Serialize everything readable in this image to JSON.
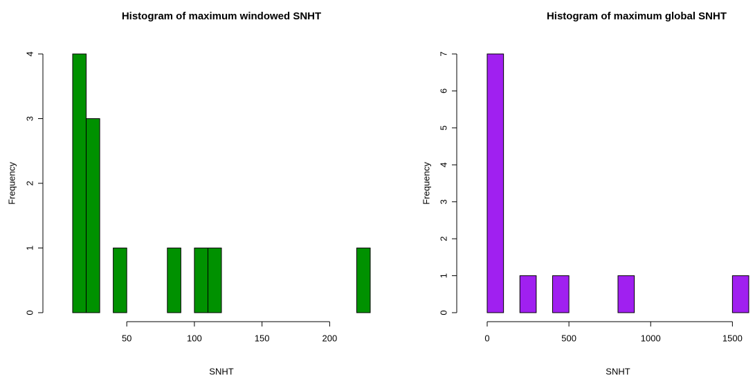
{
  "chart_data": [
    {
      "type": "histogram",
      "title": "Histogram of maximum windowed SNHT",
      "x_label": "SNHT",
      "y_label": "Frequency",
      "bins": [
        10,
        20,
        30,
        40,
        50,
        60,
        70,
        80,
        90,
        100,
        110,
        120,
        130,
        140,
        150,
        160,
        170,
        180,
        190,
        200,
        210,
        220,
        230
      ],
      "values": [
        4,
        3,
        0,
        1,
        0,
        0,
        0,
        1,
        0,
        1,
        1,
        0,
        0,
        0,
        0,
        0,
        0,
        0,
        0,
        0,
        0,
        1
      ],
      "color": "#009100",
      "xlim": [
        10,
        230
      ],
      "ylim": [
        0,
        4
      ],
      "xticks": [
        50,
        100,
        150,
        200
      ],
      "yticks": [
        0,
        1,
        2,
        3,
        4
      ]
    },
    {
      "type": "histogram",
      "title": "Histogram of maximum global SNHT",
      "x_label": "SNHT",
      "y_label": "Frequency",
      "bins": [
        0,
        100,
        200,
        300,
        400,
        500,
        600,
        700,
        800,
        900,
        1000,
        1100,
        1200,
        1300,
        1400,
        1500,
        1600
      ],
      "values": [
        7,
        0,
        1,
        0,
        1,
        0,
        0,
        0,
        1,
        0,
        0,
        0,
        0,
        0,
        0,
        1
      ],
      "color": "#a020f0",
      "xlim": [
        0,
        1600
      ],
      "ylim": [
        0,
        7
      ],
      "xticks": [
        0,
        500,
        1000,
        1500
      ],
      "yticks": [
        0,
        1,
        2,
        3,
        4,
        5,
        6,
        7
      ]
    }
  ]
}
